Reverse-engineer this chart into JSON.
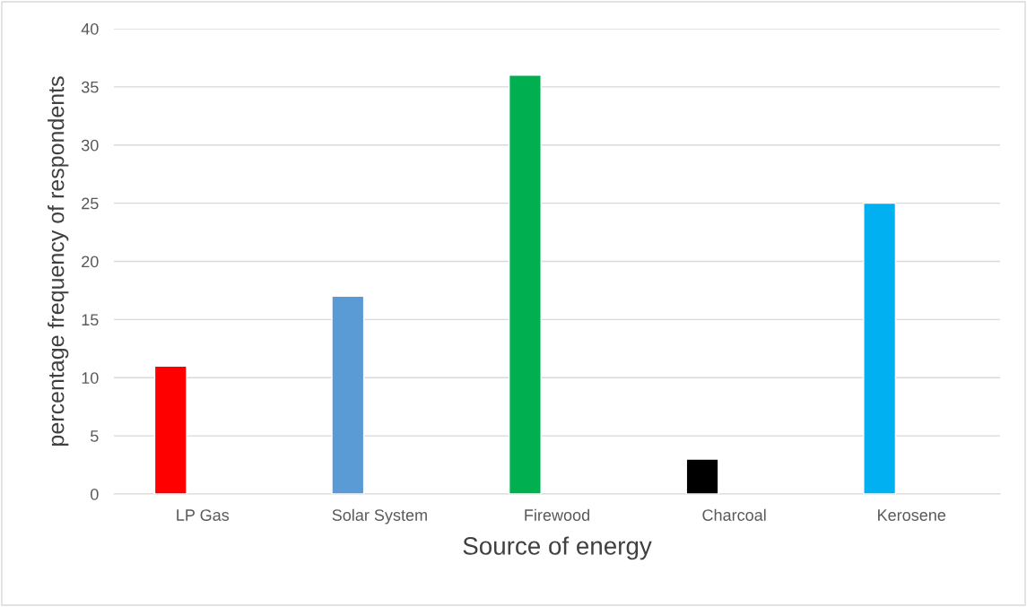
{
  "chart_data": {
    "type": "bar",
    "xlabel": "Source of energy",
    "ylabel": "percentage frequency of respondents",
    "categories": [
      "LP Gas",
      "Solar System",
      "Firewood",
      "Charcoal",
      "Kerosene"
    ],
    "values": [
      11,
      17,
      36,
      3,
      25
    ],
    "colors": [
      "#ff0000",
      "#5b9bd5",
      "#00b050",
      "#000000",
      "#00b0f0"
    ],
    "ylim": [
      0,
      40
    ],
    "yticks": [
      0,
      5,
      10,
      15,
      20,
      25,
      30,
      35,
      40
    ],
    "grid": "y"
  }
}
